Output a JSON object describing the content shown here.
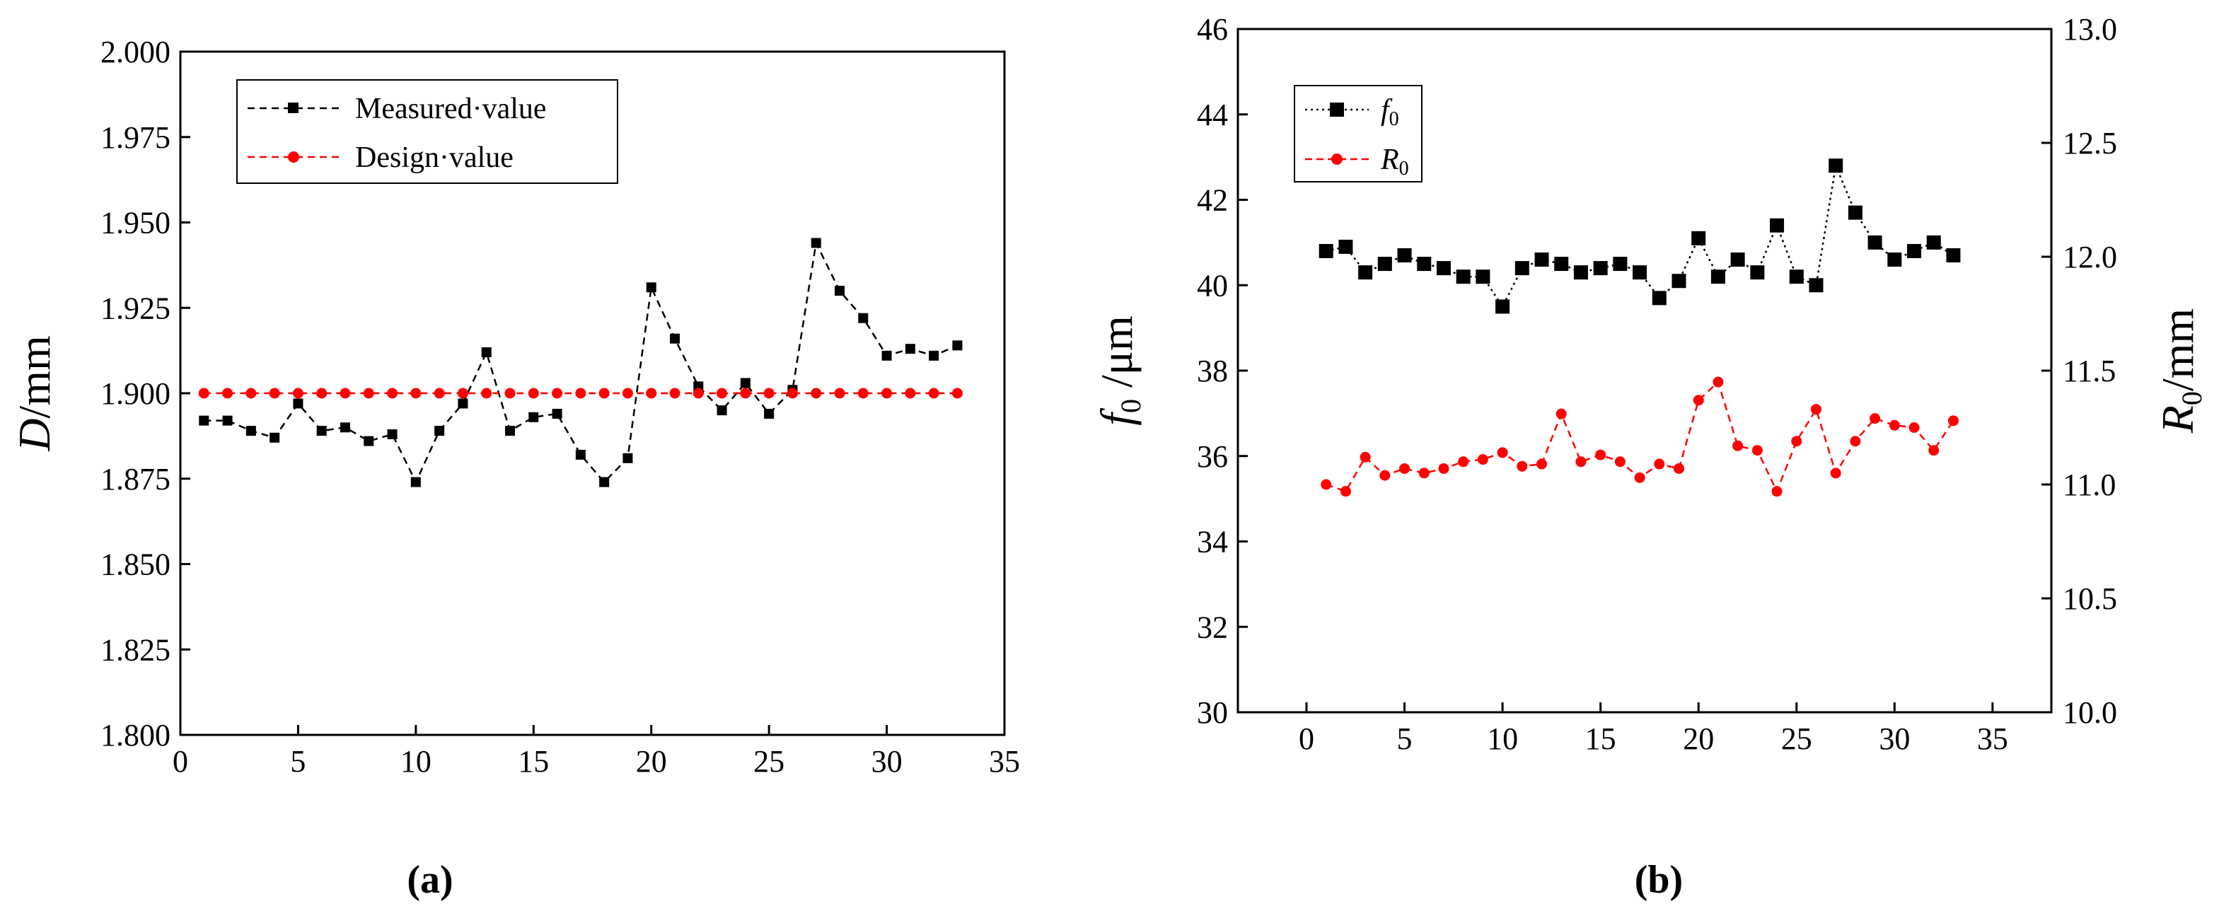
{
  "chart_data": [
    {
      "type": "line",
      "panel_label": "(a)",
      "ylabel_italic": "D",
      "ylabel_rest": "/mm",
      "xlabel": "",
      "xlim": [
        0,
        35
      ],
      "ylim": [
        1.8,
        2.0
      ],
      "xticks": [
        "0",
        "5",
        "10",
        "15",
        "20",
        "25",
        "30",
        "35"
      ],
      "yticks": [
        "1.800",
        "1.825",
        "1.850",
        "1.875",
        "1.900",
        "1.925",
        "1.950",
        "1.975",
        "2.000"
      ],
      "legend_position": "top-left",
      "series": [
        {
          "name": "Measured value",
          "legend_label": "Measured·value",
          "color": "#000000",
          "marker": "square",
          "x": [
            1,
            2,
            3,
            4,
            5,
            6,
            7,
            8,
            9,
            10,
            11,
            12,
            13,
            14,
            15,
            16,
            17,
            18,
            19,
            20,
            21,
            22,
            23,
            24,
            25,
            26,
            27,
            28,
            29,
            30,
            31,
            32,
            33
          ],
          "values": [
            1.892,
            1.892,
            1.889,
            1.887,
            1.897,
            1.889,
            1.89,
            1.886,
            1.888,
            1.874,
            1.889,
            1.897,
            1.912,
            1.889,
            1.893,
            1.894,
            1.882,
            1.874,
            1.881,
            1.931,
            1.916,
            1.902,
            1.895,
            1.903,
            1.894,
            1.901,
            1.944,
            1.93,
            1.922,
            1.911,
            1.913,
            1.911,
            1.914
          ]
        },
        {
          "name": "Design value",
          "legend_label": "Design·value",
          "color": "#ff0000",
          "marker": "circle",
          "x": [
            1,
            2,
            3,
            4,
            5,
            6,
            7,
            8,
            9,
            10,
            11,
            12,
            13,
            14,
            15,
            16,
            17,
            18,
            19,
            20,
            21,
            22,
            23,
            24,
            25,
            26,
            27,
            28,
            29,
            30,
            31,
            32,
            33
          ],
          "values": [
            1.9,
            1.9,
            1.9,
            1.9,
            1.9,
            1.9,
            1.9,
            1.9,
            1.9,
            1.9,
            1.9,
            1.9,
            1.9,
            1.9,
            1.9,
            1.9,
            1.9,
            1.9,
            1.9,
            1.9,
            1.9,
            1.9,
            1.9,
            1.9,
            1.9,
            1.9,
            1.9,
            1.9,
            1.9,
            1.9,
            1.9,
            1.9,
            1.9
          ]
        }
      ]
    },
    {
      "type": "line",
      "panel_label": "(b)",
      "ylabel_left_italic": "f",
      "ylabel_left_sub": "0",
      "ylabel_left_rest": " /μm",
      "ylabel_right_italic": "R",
      "ylabel_right_sub": "0",
      "ylabel_right_rest": "/mm",
      "xlabel": "",
      "xlim": [
        -3.5,
        38
      ],
      "xticks": [
        "0",
        "5",
        "10",
        "15",
        "20",
        "25",
        "30",
        "35"
      ],
      "ylim_left": [
        30,
        46
      ],
      "ylim_right": [
        10.0,
        13.0
      ],
      "yticks_left": [
        "30",
        "32",
        "34",
        "36",
        "38",
        "40",
        "42",
        "44",
        "46"
      ],
      "yticks_right": [
        "10.0",
        "10.5",
        "11.0",
        "11.5",
        "12.0",
        "12.5",
        "13.0"
      ],
      "legend_position": "top-left",
      "series": [
        {
          "name": "f0",
          "legend_italic": "f",
          "legend_sub": "0",
          "axis": "left",
          "color": "#000000",
          "marker": "square",
          "x": [
            1,
            2,
            3,
            4,
            5,
            6,
            7,
            8,
            9,
            10,
            11,
            12,
            13,
            14,
            15,
            16,
            17,
            18,
            19,
            20,
            21,
            22,
            23,
            24,
            25,
            26,
            27,
            28,
            29,
            30,
            31,
            32,
            33
          ],
          "values": [
            40.8,
            40.9,
            40.3,
            40.5,
            40.7,
            40.5,
            40.4,
            40.2,
            40.2,
            39.5,
            40.4,
            40.6,
            40.5,
            40.3,
            40.4,
            40.5,
            40.3,
            39.7,
            40.1,
            41.1,
            40.2,
            40.6,
            40.3,
            41.4,
            40.2,
            40.0,
            42.8,
            41.7,
            41.0,
            40.6,
            40.8,
            41.0,
            40.7
          ]
        },
        {
          "name": "R0",
          "legend_italic": "R",
          "legend_sub": "0",
          "axis": "right",
          "color": "#ff0000",
          "marker": "circle",
          "x": [
            1,
            2,
            3,
            4,
            5,
            6,
            7,
            8,
            9,
            10,
            11,
            12,
            13,
            14,
            15,
            16,
            17,
            18,
            19,
            20,
            21,
            22,
            23,
            24,
            25,
            26,
            27,
            28,
            29,
            30,
            31,
            32,
            33
          ],
          "values": [
            11.0,
            10.97,
            11.12,
            11.04,
            11.07,
            11.05,
            11.07,
            11.1,
            11.11,
            11.14,
            11.08,
            11.09,
            11.31,
            11.1,
            11.13,
            11.1,
            11.03,
            11.09,
            11.07,
            11.37,
            11.45,
            11.17,
            11.15,
            10.97,
            11.19,
            11.33,
            11.05,
            11.19,
            11.29,
            11.26,
            11.25,
            11.15,
            11.28
          ]
        }
      ]
    }
  ]
}
